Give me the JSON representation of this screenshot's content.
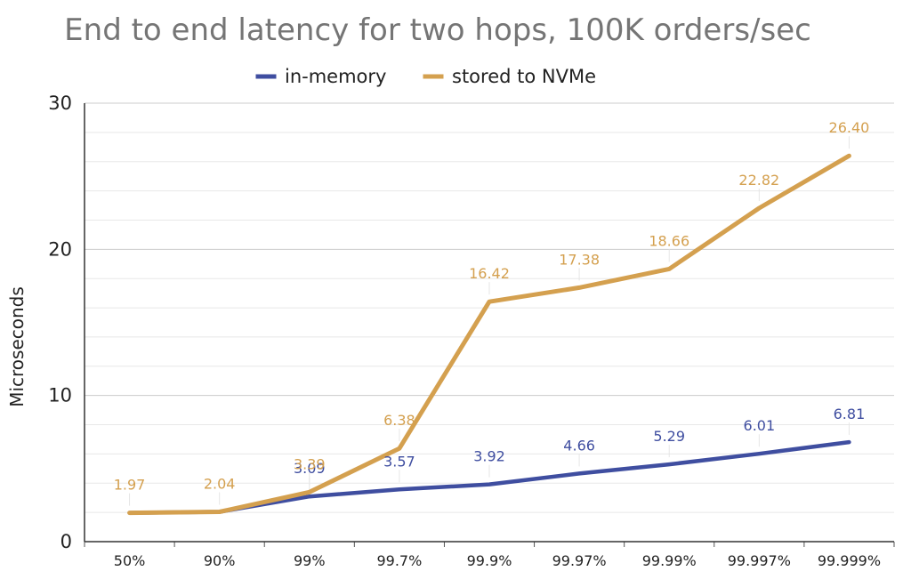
{
  "chart_data": {
    "type": "line",
    "title": "End to end latency for two hops, 100K orders/sec",
    "xlabel": "",
    "ylabel": "Microseconds",
    "categories": [
      "50%",
      "90%",
      "99%",
      "99.7%",
      "99.9%",
      "99.97%",
      "99.99%",
      "99.997%",
      "99.999%"
    ],
    "ylim": [
      0,
      30
    ],
    "yticks": [
      0,
      10,
      20,
      30
    ],
    "grid": true,
    "legend_position": "top",
    "series": [
      {
        "name": "in-memory",
        "color": "#3f4ea0",
        "values": [
          1.97,
          2.04,
          3.09,
          3.57,
          3.92,
          4.66,
          5.29,
          6.01,
          6.81
        ],
        "labels": [
          "",
          "",
          "3.09",
          "3.57",
          "3.92",
          "4.66",
          "5.29",
          "6.01",
          "6.81"
        ]
      },
      {
        "name": "stored to NVMe",
        "color": "#d4a04f",
        "values": [
          1.97,
          2.04,
          3.39,
          6.38,
          16.42,
          17.38,
          18.66,
          22.82,
          26.4
        ],
        "labels": [
          "1.97",
          "2.04",
          "3.39",
          "6.38",
          "16.42",
          "17.38",
          "18.66",
          "22.82",
          "26.40"
        ]
      }
    ]
  }
}
